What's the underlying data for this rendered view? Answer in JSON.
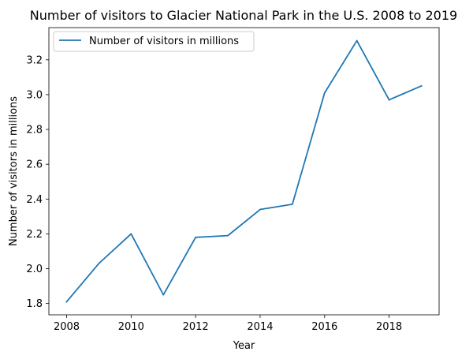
{
  "chart_data": {
    "type": "line",
    "title": "Number of visitors to Glacier National Park in the U.S. 2008 to 2019",
    "xlabel": "Year",
    "ylabel": "Number of visitors in millions",
    "x": [
      2008,
      2009,
      2010,
      2011,
      2012,
      2013,
      2014,
      2015,
      2016,
      2017,
      2018,
      2019
    ],
    "series": [
      {
        "name": "Number of visitors in millions",
        "values": [
          1.81,
          2.03,
          2.2,
          1.85,
          2.18,
          2.19,
          2.34,
          2.37,
          3.01,
          3.31,
          2.97,
          3.05
        ],
        "color": "#1f77b4"
      }
    ],
    "xlim": [
      2007.45,
      2019.55
    ],
    "ylim": [
      1.735,
      3.385
    ],
    "xticks": [
      2008,
      2010,
      2012,
      2014,
      2016,
      2018
    ],
    "yticks": [
      "1.8",
      "2.0",
      "2.2",
      "2.4",
      "2.6",
      "2.8",
      "3.0",
      "3.2"
    ],
    "grid": false,
    "legend_position": "top-left"
  }
}
